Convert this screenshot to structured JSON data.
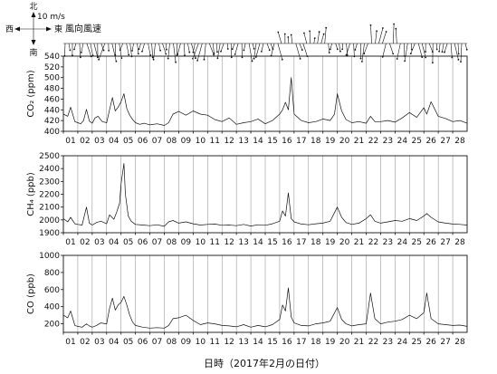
{
  "chart_data": [
    {
      "type": "wind-vectors",
      "title": "風向風速",
      "compass": {
        "north": "北",
        "south": "南",
        "west": "西",
        "east": "東",
        "scale": "10 m/s"
      },
      "notes": "time series of wind arrows, Feb 2017 (one arrow per ~6h)"
    },
    {
      "type": "line",
      "ylabel": "CO₂ (ppm)",
      "ylim": [
        400,
        540
      ],
      "yticks": [
        400,
        420,
        440,
        460,
        480,
        500,
        520,
        540
      ],
      "xlim": [
        1,
        29
      ],
      "grid": true,
      "series": [
        {
          "x": [
            1,
            1.3,
            1.5,
            1.8,
            2,
            2.2,
            2.4,
            2.6,
            2.8,
            3,
            3.2,
            3.4,
            3.7,
            4,
            4.2,
            4.4,
            4.6,
            4.8,
            5,
            5.2,
            5.4,
            5.6,
            5.8,
            6,
            6.3,
            6.6,
            7,
            7.5,
            8,
            8.3,
            8.6,
            9,
            9.5,
            10,
            10.5,
            11,
            11.5,
            12,
            12.5,
            13,
            13.5,
            14,
            14.5,
            15,
            15.5,
            16,
            16.2,
            16.4,
            16.6,
            16.8,
            17,
            17.5,
            18,
            18.5,
            19,
            19.5,
            19.8,
            20,
            20.3,
            20.6,
            21,
            21.5,
            22,
            22.3,
            22.6,
            23,
            23.5,
            24,
            24.5,
            25,
            25.5,
            26,
            26.2,
            26.5,
            27,
            27.5,
            28,
            28.5,
            29
          ],
          "values": [
            432,
            428,
            445,
            418,
            416,
            414,
            420,
            441,
            419,
            415,
            425,
            428,
            418,
            416,
            440,
            463,
            438,
            445,
            455,
            470,
            442,
            430,
            422,
            416,
            413,
            415,
            412,
            414,
            411,
            416,
            432,
            437,
            430,
            438,
            432,
            430,
            422,
            418,
            425,
            413,
            416,
            418,
            423,
            414,
            420,
            432,
            440,
            454,
            440,
            500,
            432,
            420,
            416,
            418,
            423,
            420,
            432,
            470,
            438,
            422,
            416,
            418,
            415,
            428,
            418,
            418,
            420,
            417,
            425,
            435,
            426,
            444,
            432,
            455,
            428,
            424,
            418,
            420,
            415
          ]
        }
      ]
    },
    {
      "type": "line",
      "ylabel": "CH₄ (ppb)",
      "ylim": [
        1900,
        2500
      ],
      "yticks": [
        1900,
        2000,
        2100,
        2200,
        2300,
        2400,
        2500
      ],
      "xlim": [
        1,
        29
      ],
      "grid": true,
      "series": [
        {
          "x": [
            1,
            1.3,
            1.5,
            1.8,
            2,
            2.3,
            2.6,
            2.8,
            3,
            3.3,
            3.6,
            4,
            4.2,
            4.5,
            4.7,
            4.9,
            5,
            5.2,
            5.3,
            5.5,
            5.7,
            6,
            6.5,
            7,
            7.5,
            8,
            8.3,
            8.6,
            9,
            9.5,
            10,
            10.5,
            11,
            11.5,
            12,
            12.5,
            13,
            13.5,
            14,
            14.5,
            15,
            15.5,
            16,
            16.2,
            16.4,
            16.6,
            16.8,
            17,
            17.5,
            18,
            18.5,
            19,
            19.5,
            20,
            20.3,
            20.6,
            21,
            21.5,
            22,
            22.3,
            22.6,
            23,
            23.5,
            24,
            24.5,
            25,
            25.5,
            26,
            26.2,
            26.5,
            27,
            27.5,
            28,
            28.5,
            29
          ],
          "values": [
            2010,
            1985,
            2020,
            1970,
            1965,
            1960,
            2100,
            1975,
            1960,
            1980,
            1990,
            1970,
            2040,
            2005,
            2060,
            2130,
            2280,
            2440,
            2200,
            2030,
            1990,
            1965,
            1960,
            1955,
            1962,
            1950,
            1985,
            1995,
            1975,
            1985,
            1970,
            1960,
            1965,
            1968,
            1958,
            1960,
            1955,
            1965,
            1952,
            1962,
            1958,
            1970,
            1990,
            2070,
            2030,
            2210,
            2010,
            1985,
            1968,
            1962,
            1970,
            1975,
            1990,
            2100,
            2020,
            1980,
            1965,
            1975,
            2010,
            2040,
            1990,
            1975,
            1985,
            1995,
            1990,
            2010,
            1995,
            2030,
            2050,
            2020,
            1985,
            1975,
            1968,
            1965,
            1960
          ]
        }
      ]
    },
    {
      "type": "line",
      "ylabel": "CO (ppb)",
      "ylim": [
        100,
        1000
      ],
      "yticks": [
        200,
        400,
        600,
        800,
        1000
      ],
      "xlim": [
        1,
        29
      ],
      "grid": true,
      "series": [
        {
          "x": [
            1,
            1.3,
            1.5,
            1.8,
            2,
            2.3,
            2.6,
            2.8,
            3,
            3.3,
            3.6,
            4,
            4.2,
            4.4,
            4.6,
            4.8,
            5,
            5.2,
            5.4,
            5.6,
            5.8,
            6,
            6.5,
            7,
            7.5,
            8,
            8.3,
            8.6,
            9,
            9.5,
            10,
            10.5,
            11,
            11.5,
            12,
            12.5,
            13,
            13.5,
            14,
            14.5,
            15,
            15.5,
            16,
            16.2,
            16.4,
            16.6,
            16.8,
            17,
            17.5,
            18,
            18.5,
            19,
            19.5,
            20,
            20.3,
            20.6,
            21,
            21.5,
            22,
            22.3,
            22.6,
            23,
            23.5,
            24,
            24.5,
            25,
            25.5,
            26,
            26.2,
            26.5,
            27,
            27.5,
            28,
            28.5,
            29
          ],
          "values": [
            300,
            270,
            350,
            180,
            170,
            160,
            200,
            175,
            160,
            180,
            210,
            200,
            380,
            500,
            360,
            420,
            450,
            520,
            420,
            300,
            220,
            180,
            160,
            150,
            155,
            150,
            180,
            260,
            270,
            300,
            240,
            190,
            210,
            200,
            180,
            175,
            165,
            190,
            160,
            180,
            165,
            190,
            250,
            420,
            350,
            620,
            280,
            210,
            180,
            175,
            200,
            210,
            230,
            390,
            250,
            200,
            175,
            190,
            200,
            560,
            260,
            200,
            220,
            230,
            250,
            300,
            260,
            330,
            560,
            260,
            200,
            190,
            180,
            185,
            170
          ]
        }
      ]
    }
  ],
  "xaxis": {
    "ticks": [
      "01",
      "02",
      "03",
      "04",
      "05",
      "06",
      "07",
      "08",
      "09",
      "10",
      "11",
      "12",
      "13",
      "14",
      "15",
      "16",
      "17",
      "18",
      "19",
      "20",
      "21",
      "22",
      "23",
      "24",
      "25",
      "26",
      "27",
      "28"
    ],
    "label": "日時（2017年2月の日付）"
  }
}
